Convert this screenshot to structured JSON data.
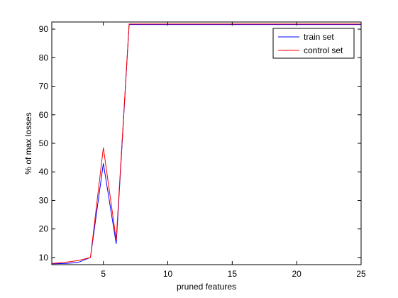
{
  "chart_data": {
    "type": "line",
    "title": "",
    "xlabel": "pruned features",
    "ylabel": "% of max losses",
    "xlim": [
      1,
      25
    ],
    "ylim": [
      7.5,
      92.5
    ],
    "xticks": [
      5,
      10,
      15,
      20,
      25
    ],
    "yticks": [
      10,
      20,
      30,
      40,
      50,
      60,
      70,
      80,
      90
    ],
    "grid": false,
    "legend_position": "top-right",
    "x": [
      1,
      2,
      3,
      4,
      5,
      6,
      7,
      8,
      9,
      10,
      11,
      12,
      13,
      14,
      15,
      16,
      17,
      18,
      19,
      20,
      21,
      22,
      23,
      24,
      25
    ],
    "series": [
      {
        "name": "train set",
        "color": "#0000ff",
        "values": [
          7.8,
          7.9,
          8.2,
          10.0,
          43.0,
          14.8,
          91.6,
          91.6,
          91.6,
          91.6,
          91.6,
          91.6,
          91.6,
          91.6,
          91.6,
          91.6,
          91.6,
          91.6,
          91.6,
          91.6,
          91.6,
          91.6,
          91.6,
          91.6,
          91.6
        ]
      },
      {
        "name": "control set",
        "color": "#ff0000",
        "values": [
          7.9,
          8.3,
          8.9,
          10.0,
          48.5,
          16.2,
          91.8,
          91.8,
          91.8,
          91.8,
          91.8,
          91.8,
          91.8,
          91.8,
          91.8,
          91.8,
          91.8,
          91.8,
          91.8,
          91.8,
          91.8,
          91.8,
          91.8,
          91.8,
          91.8
        ]
      }
    ]
  }
}
